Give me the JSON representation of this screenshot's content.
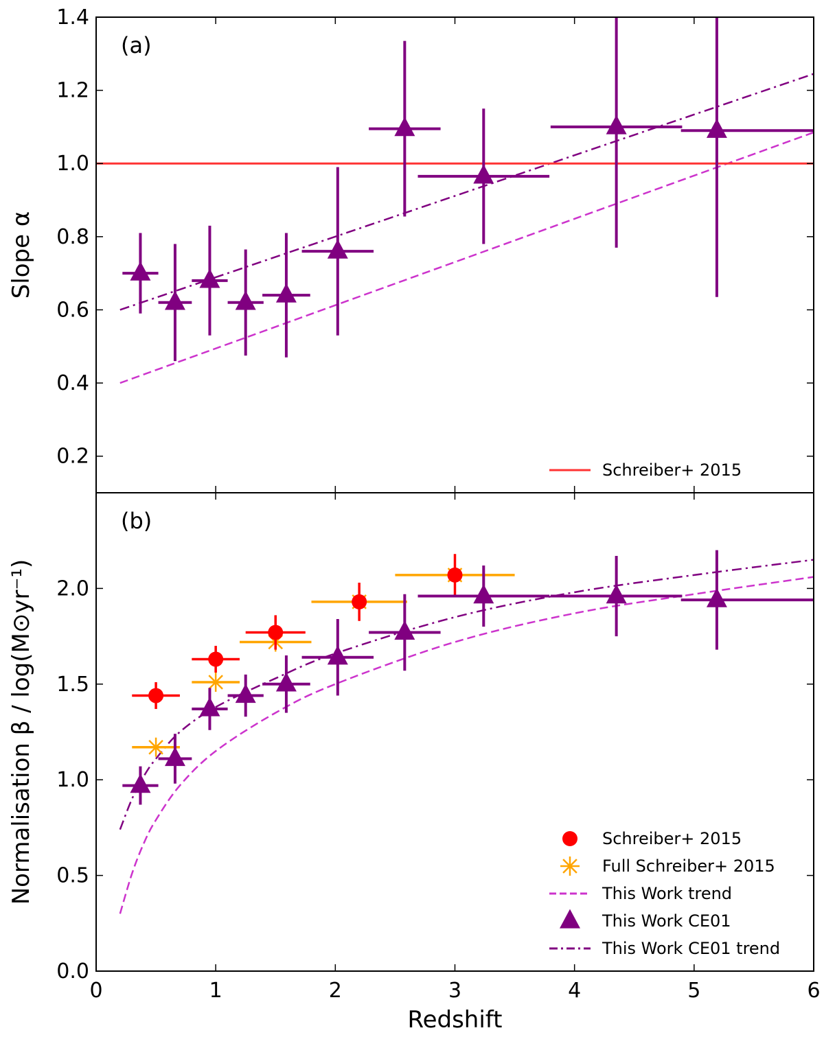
{
  "chart_data": [
    {
      "type": "scatter",
      "panel_tag": "(a)",
      "xlabel": "Redshift",
      "ylabel": "Slope α",
      "xlim": [
        0,
        6
      ],
      "ylim": [
        0.1,
        1.4
      ],
      "yticks": [
        0.2,
        0.4,
        0.6,
        0.8,
        1.0,
        1.2,
        1.4
      ],
      "ytick_labels": [
        "0.2",
        "0.4",
        "0.6",
        "0.8",
        "1.0",
        "1.2",
        "1.4"
      ],
      "legend_position": "bottom-right",
      "series": [
        {
          "name": "This Work CE01",
          "kind": "points",
          "marker": "triangle",
          "color": "#800080",
          "in_legend": false,
          "points": [
            {
              "x": 0.37,
              "y": 0.7,
              "xerr": [
                0.15,
                0.15
              ],
              "yerr": [
                0.11,
                0.11
              ]
            },
            {
              "x": 0.66,
              "y": 0.62,
              "xerr": [
                0.14,
                0.14
              ],
              "yerr": [
                0.16,
                0.16
              ]
            },
            {
              "x": 0.95,
              "y": 0.68,
              "xerr": [
                0.15,
                0.15
              ],
              "yerr": [
                0.15,
                0.15
              ]
            },
            {
              "x": 1.25,
              "y": 0.62,
              "xerr": [
                0.15,
                0.15
              ],
              "yerr": [
                0.145,
                0.145
              ]
            },
            {
              "x": 1.59,
              "y": 0.64,
              "xerr": [
                0.2,
                0.2
              ],
              "yerr": [
                0.17,
                0.17
              ]
            },
            {
              "x": 2.02,
              "y": 0.76,
              "xerr": [
                0.3,
                0.3
              ],
              "yerr": [
                0.23,
                0.23
              ]
            },
            {
              "x": 2.58,
              "y": 1.095,
              "xerr": [
                0.3,
                0.3
              ],
              "yerr": [
                0.24,
                0.24
              ]
            },
            {
              "x": 3.24,
              "y": 0.965,
              "xerr": [
                0.55,
                0.55
              ],
              "yerr": [
                0.185,
                0.185
              ]
            },
            {
              "x": 4.35,
              "y": 1.1,
              "xerr": [
                0.55,
                0.55
              ],
              "yerr": [
                0.33,
                0.33
              ]
            },
            {
              "x": 5.19,
              "y": 1.09,
              "xerr": [
                0.3,
                0.81
              ],
              "yerr": [
                0.455,
                0.455
              ]
            }
          ]
        },
        {
          "name": "This Work CE01 trend",
          "kind": "line",
          "style": "dashdot",
          "color": "#800080",
          "in_legend": false,
          "x": [
            0.2,
            6
          ],
          "y": [
            0.6,
            1.245
          ]
        },
        {
          "name": "This Work trend",
          "kind": "line",
          "style": "dashed",
          "color": "#cc33cc",
          "in_legend": false,
          "x": [
            0.2,
            6
          ],
          "y": [
            0.4,
            1.085
          ]
        },
        {
          "name": "Schreiber+ 2015",
          "kind": "hline",
          "style": "solid",
          "color": "#ff3333",
          "in_legend": true,
          "y": 1.0
        }
      ]
    },
    {
      "type": "scatter",
      "panel_tag": "(b)",
      "xlabel": "Redshift",
      "ylabel": "Normalisation β / log(M⊙yr⁻¹)",
      "xlim": [
        0,
        6
      ],
      "ylim": [
        0.0,
        2.5
      ],
      "xticks": [
        0,
        1,
        2,
        3,
        4,
        5,
        6
      ],
      "xtick_labels": [
        "0",
        "1",
        "2",
        "3",
        "4",
        "5",
        "6"
      ],
      "yticks": [
        0.0,
        0.5,
        1.0,
        1.5,
        2.0
      ],
      "ytick_labels": [
        "0.0",
        "0.5",
        "1.0",
        "1.5",
        "2.0"
      ],
      "legend_position": "bottom-right",
      "series": [
        {
          "name": "Full Schreiber+ 2015",
          "kind": "points",
          "marker": "asterisk",
          "color": "#ffa500",
          "in_legend": true,
          "points": [
            {
              "x": 0.5,
              "y": 1.17,
              "xerr": [
                0.2,
                0.2
              ],
              "yerr": [
                0,
                0
              ]
            },
            {
              "x": 1.0,
              "y": 1.51,
              "xerr": [
                0.2,
                0.2
              ],
              "yerr": [
                0,
                0
              ]
            },
            {
              "x": 1.5,
              "y": 1.72,
              "xerr": [
                0.3,
                0.3
              ],
              "yerr": [
                0,
                0
              ]
            },
            {
              "x": 2.2,
              "y": 1.93,
              "xerr": [
                0.4,
                0.4
              ],
              "yerr": [
                0,
                0
              ]
            },
            {
              "x": 3.0,
              "y": 2.07,
              "xerr": [
                0.5,
                0.5
              ],
              "yerr": [
                0,
                0
              ]
            }
          ]
        },
        {
          "name": "Schreiber+ 2015",
          "kind": "points",
          "marker": "circle",
          "color": "#ff0000",
          "in_legend": true,
          "points": [
            {
              "x": 0.5,
              "y": 1.44,
              "xerr": [
                0.2,
                0.2
              ],
              "yerr": [
                0.07,
                0.07
              ]
            },
            {
              "x": 1.0,
              "y": 1.63,
              "xerr": [
                0.2,
                0.2
              ],
              "yerr": [
                0.07,
                0.07
              ]
            },
            {
              "x": 1.5,
              "y": 1.77,
              "xerr": [
                0.25,
                0.25
              ],
              "yerr": [
                0.09,
                0.09
              ]
            },
            {
              "x": 2.2,
              "y": 1.93,
              "xerr": [
                0,
                0
              ],
              "yerr": [
                0.1,
                0.1
              ]
            },
            {
              "x": 3.0,
              "y": 2.07,
              "xerr": [
                0,
                0
              ],
              "yerr": [
                0.11,
                0.11
              ]
            }
          ]
        },
        {
          "name": "This Work trend",
          "kind": "curve",
          "style": "dashed",
          "color": "#cc33cc",
          "in_legend": true,
          "x": [
            0.2,
            0.3,
            0.4,
            0.5,
            0.7,
            1.0,
            1.5,
            2.0,
            3.0,
            4.0,
            5.0,
            6.0
          ],
          "y": [
            0.3,
            0.51,
            0.67,
            0.79,
            0.97,
            1.15,
            1.35,
            1.5,
            1.72,
            1.87,
            1.97,
            2.06
          ]
        },
        {
          "name": "This Work CE01",
          "kind": "points",
          "marker": "triangle",
          "color": "#800080",
          "in_legend": true,
          "points": [
            {
              "x": 0.37,
              "y": 0.97,
              "xerr": [
                0.15,
                0.15
              ],
              "yerr": [
                0.1,
                0.1
              ]
            },
            {
              "x": 0.66,
              "y": 1.11,
              "xerr": [
                0.14,
                0.14
              ],
              "yerr": [
                0.13,
                0.13
              ]
            },
            {
              "x": 0.95,
              "y": 1.37,
              "xerr": [
                0.15,
                0.15
              ],
              "yerr": [
                0.11,
                0.11
              ]
            },
            {
              "x": 1.25,
              "y": 1.44,
              "xerr": [
                0.15,
                0.15
              ],
              "yerr": [
                0.11,
                0.11
              ]
            },
            {
              "x": 1.59,
              "y": 1.5,
              "xerr": [
                0.2,
                0.2
              ],
              "yerr": [
                0.15,
                0.15
              ]
            },
            {
              "x": 2.02,
              "y": 1.64,
              "xerr": [
                0.3,
                0.3
              ],
              "yerr": [
                0.2,
                0.2
              ]
            },
            {
              "x": 2.58,
              "y": 1.77,
              "xerr": [
                0.3,
                0.3
              ],
              "yerr": [
                0.2,
                0.2
              ]
            },
            {
              "x": 3.24,
              "y": 1.96,
              "xerr": [
                0.55,
                0.55
              ],
              "yerr": [
                0.16,
                0.16
              ]
            },
            {
              "x": 4.35,
              "y": 1.96,
              "xerr": [
                0.55,
                0.55
              ],
              "yerr": [
                0.21,
                0.21
              ]
            },
            {
              "x": 5.19,
              "y": 1.94,
              "xerr": [
                0.3,
                0.81
              ],
              "yerr": [
                0.26,
                0.26
              ]
            }
          ]
        },
        {
          "name": "This Work CE01 trend",
          "kind": "curve",
          "style": "dashdot",
          "color": "#800080",
          "in_legend": true,
          "x": [
            0.2,
            0.3,
            0.4,
            0.5,
            0.7,
            1.0,
            1.5,
            2.0,
            3.0,
            4.0,
            5.0,
            6.0
          ],
          "y": [
            0.74,
            0.9,
            1.02,
            1.11,
            1.25,
            1.38,
            1.53,
            1.66,
            1.85,
            1.98,
            2.07,
            2.15
          ]
        }
      ]
    }
  ]
}
